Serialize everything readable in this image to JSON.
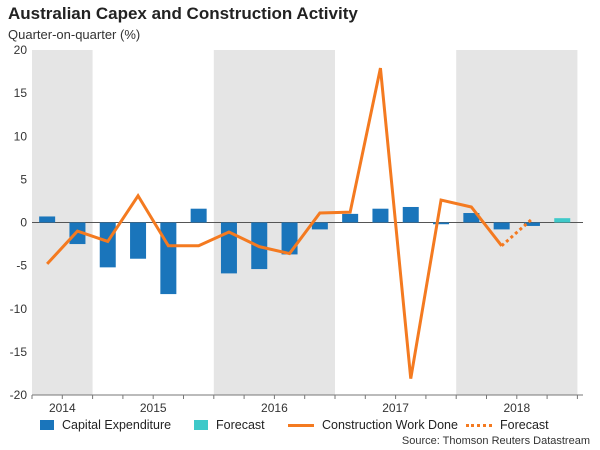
{
  "title": "Australian Capex and Construction Activity",
  "subtitle": "Quarter-on-quarter (%)",
  "source": "Source: Thomson Reuters Datastream",
  "colors": {
    "capex": "#1a75bb",
    "capex_forecast": "#3ec9c9",
    "construction": "#f47a20",
    "shade": "#e5e5e5"
  },
  "chart_data": {
    "type": "bar",
    "ylim": [
      -20,
      20
    ],
    "yticks": [
      -20,
      -15,
      -10,
      -5,
      0,
      5,
      10,
      15,
      20
    ],
    "x": [
      "2014Q3",
      "2014Q4",
      "2015Q1",
      "2015Q2",
      "2015Q3",
      "2015Q4",
      "2016Q1",
      "2016Q2",
      "2016Q3",
      "2016Q4",
      "2017Q1",
      "2017Q2",
      "2017Q3",
      "2017Q4",
      "2018Q1",
      "2018Q2",
      "2018Q3",
      "2018Q4"
    ],
    "year_labels": [
      {
        "label": "2014",
        "start": 0,
        "count": 2
      },
      {
        "label": "2015",
        "start": 2,
        "count": 4
      },
      {
        "label": "2016",
        "start": 6,
        "count": 4
      },
      {
        "label": "2017",
        "start": 10,
        "count": 4
      },
      {
        "label": "2018",
        "start": 14,
        "count": 4
      }
    ],
    "shaded_years": [
      0,
      2,
      4
    ],
    "series": [
      {
        "name": "Capital Expenditure",
        "type": "bar",
        "values": [
          0.7,
          -2.5,
          -5.2,
          -4.2,
          -8.3,
          1.6,
          -5.9,
          -5.4,
          -3.7,
          -0.8,
          1.0,
          1.6,
          1.8,
          -0.2,
          1.1,
          -0.8,
          -0.4,
          null
        ]
      },
      {
        "name": "Forecast",
        "type": "bar",
        "values": [
          null,
          null,
          null,
          null,
          null,
          null,
          null,
          null,
          null,
          null,
          null,
          null,
          null,
          null,
          null,
          null,
          null,
          0.5
        ]
      },
      {
        "name": "Construction Work Done",
        "type": "line",
        "values": [
          -4.8,
          -1.0,
          -2.2,
          3.1,
          -2.7,
          -2.7,
          -1.1,
          -2.8,
          -3.6,
          1.1,
          1.2,
          17.9,
          -18.1,
          2.6,
          1.8,
          -2.7,
          null,
          null
        ]
      },
      {
        "name": "Forecast",
        "type": "line-dotted",
        "values": [
          null,
          null,
          null,
          null,
          null,
          null,
          null,
          null,
          null,
          null,
          null,
          null,
          null,
          null,
          null,
          -2.7,
          0.4,
          null
        ]
      }
    ]
  }
}
